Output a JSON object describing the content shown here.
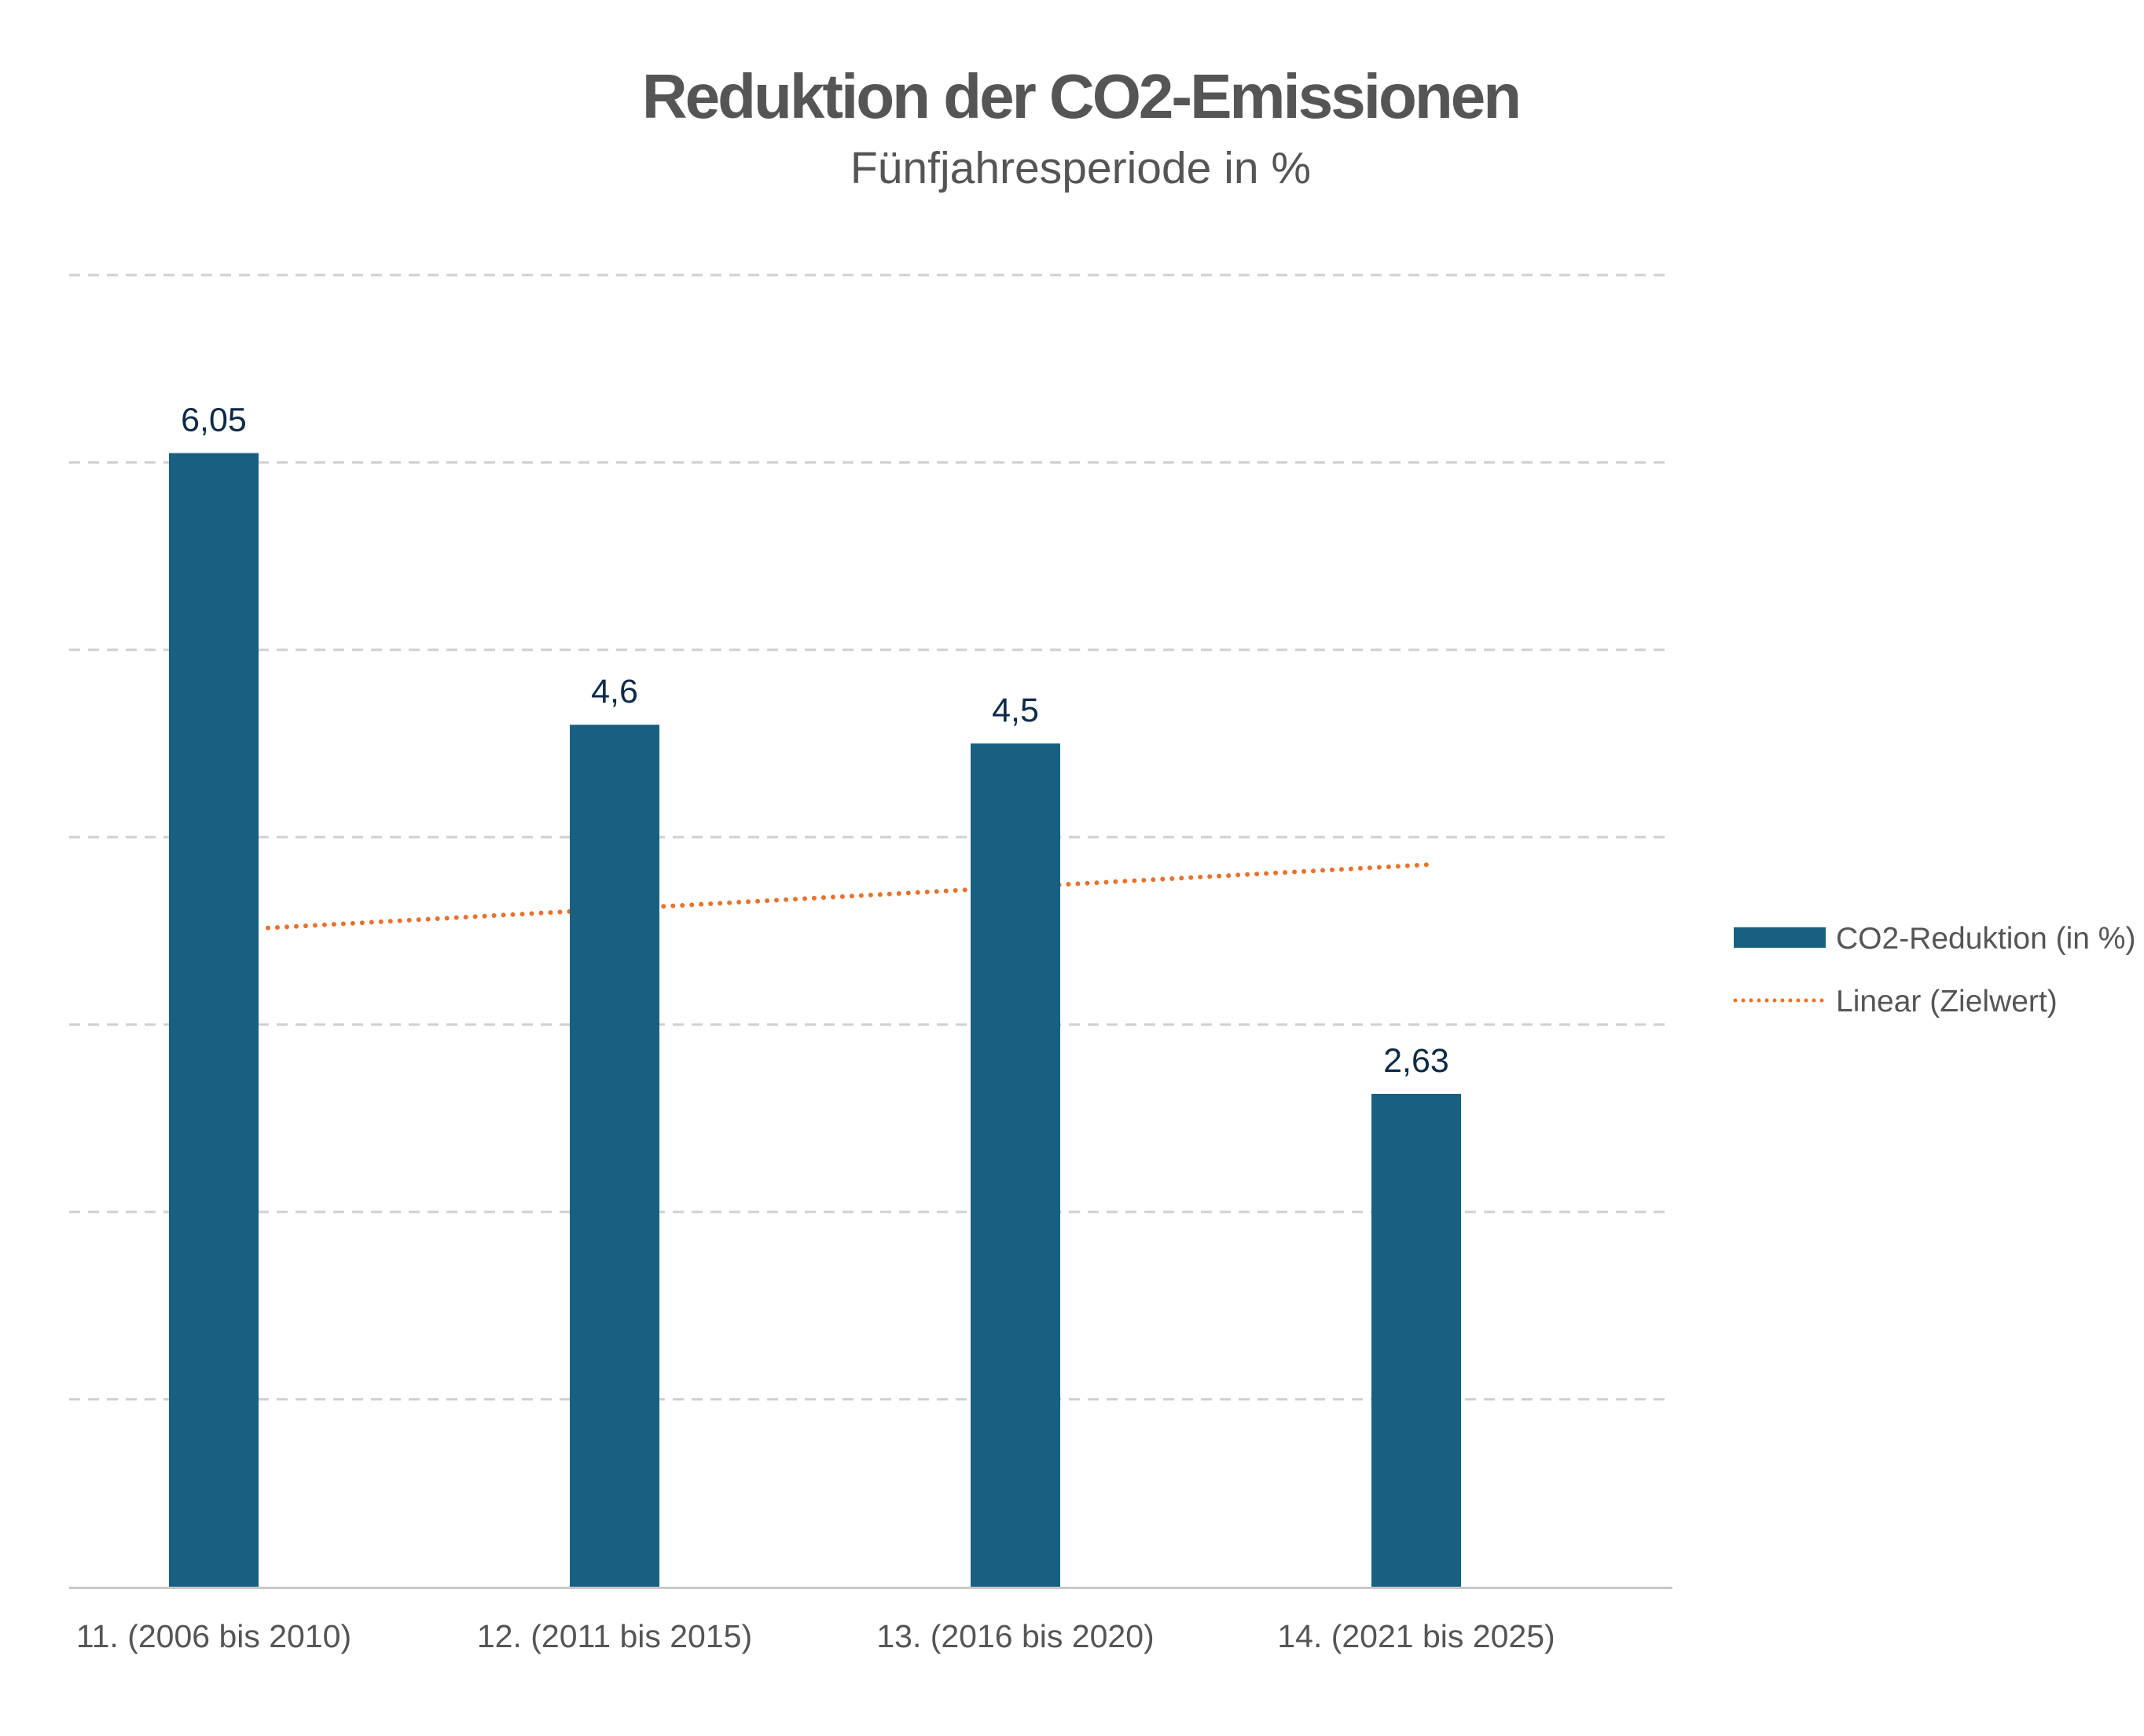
{
  "chart_data": {
    "type": "bar",
    "title": "Reduktion der CO2-Emissionen",
    "subtitle": "Fünfjahresperiode in %",
    "categories": [
      "11. (2006 bis 2010)",
      "12. (2011 bis 2015)",
      "13. (2016 bis 2020)",
      "14. (2021 bis 2025)"
    ],
    "series": [
      {
        "name": "CO2-Reduktion (in %)",
        "type": "bar",
        "values": [
          6.05,
          4.6,
          4.5,
          2.63
        ],
        "labels": [
          "6,05",
          "4,6",
          "4,5",
          "2,63"
        ],
        "color": "#176082"
      },
      {
        "name": "Linear (Zielwert)",
        "type": "line",
        "style": "dotted",
        "values": [
          3.5,
          3.6,
          3.73,
          3.85
        ],
        "color": "#E8722D"
      }
    ],
    "ylim": [
      0,
      7
    ],
    "grid": true,
    "legend": "right"
  },
  "colors": {
    "title": "#555555",
    "subtitle": "#555555",
    "data_label": "#0e2a47",
    "tick_label": "#555555",
    "grid": "#d0d0d0",
    "axis": "#c8c8c8"
  }
}
